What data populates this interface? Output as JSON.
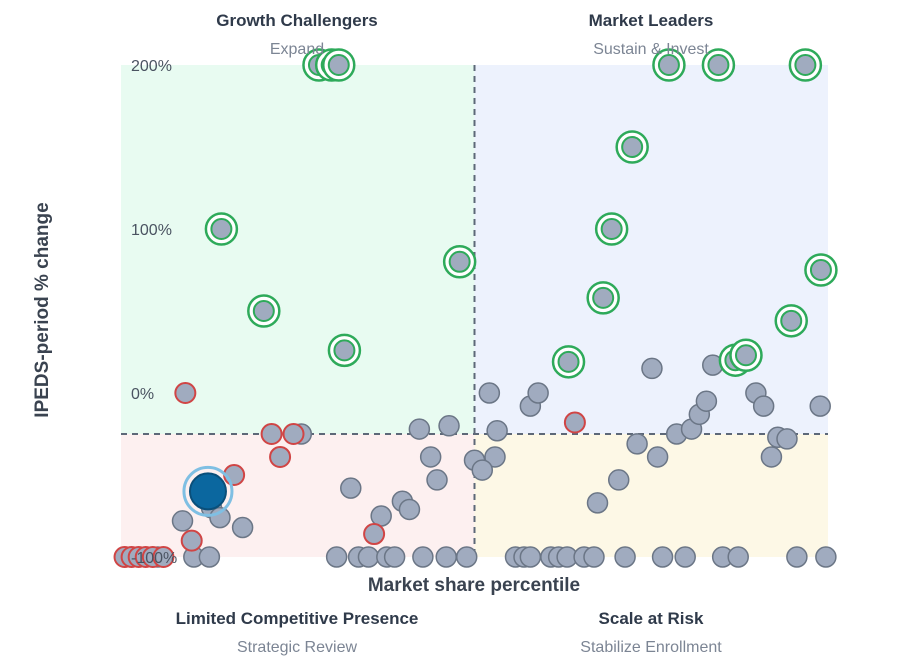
{
  "chart_data": {
    "type": "scatter",
    "xlabel": "Market share percentile",
    "ylabel": "IPEDS-period % change",
    "xlim": [
      0,
      100
    ],
    "ylim": [
      -100,
      200
    ],
    "y_ticks": [
      200,
      100,
      0,
      -100
    ],
    "y_tick_labels": [
      "200%",
      "100%",
      "0%",
      "-100%"
    ],
    "x_divider": 50,
    "y_divider": -25,
    "quadrants": [
      {
        "title": "Growth Challengers",
        "subtitle": "Expand",
        "position": "top-left",
        "fill": "#e8fbf1"
      },
      {
        "title": "Market Leaders",
        "subtitle": "Sustain & Invest",
        "position": "top-right",
        "fill": "#edf2fd"
      },
      {
        "title": "Limited Competitive Presence",
        "subtitle": "Strategic Review",
        "position": "bottom-left",
        "fill": "#fdf0f0"
      },
      {
        "title": "Scale at Risk",
        "subtitle": "Stabilize Enrollment",
        "position": "bottom-right",
        "fill": "#fdf8e6"
      }
    ],
    "colors": {
      "point_fill": "#a0abbf",
      "point_stroke": "#6b7686",
      "growth_ring": "#2eaa5a",
      "decline_ring": "#d04545",
      "highlight_fill": "#0b679f",
      "highlight_ring": "#7fbfe3",
      "divider": "#5d6878"
    },
    "points": [
      {
        "x": 0.5,
        "y": -100,
        "ring": "red"
      },
      {
        "x": 1.5,
        "y": -100,
        "ring": "red"
      },
      {
        "x": 2.5,
        "y": -100,
        "ring": "red"
      },
      {
        "x": 3.5,
        "y": -100,
        "ring": "red"
      },
      {
        "x": 4.5,
        "y": -100,
        "ring": "red"
      },
      {
        "x": 5.2,
        "y": -100,
        "ring": "none"
      },
      {
        "x": 6.0,
        "y": -100,
        "ring": "red"
      },
      {
        "x": 10.3,
        "y": -100,
        "ring": "none"
      },
      {
        "x": 12.5,
        "y": -100,
        "ring": "none"
      },
      {
        "x": 30.5,
        "y": -100,
        "ring": "none"
      },
      {
        "x": 33.6,
        "y": -100,
        "ring": "none"
      },
      {
        "x": 35.0,
        "y": -100,
        "ring": "none"
      },
      {
        "x": 37.6,
        "y": -100,
        "ring": "none"
      },
      {
        "x": 38.7,
        "y": -100,
        "ring": "none"
      },
      {
        "x": 42.7,
        "y": -100,
        "ring": "none"
      },
      {
        "x": 46.0,
        "y": -100,
        "ring": "none"
      },
      {
        "x": 48.9,
        "y": -100,
        "ring": "none"
      },
      {
        "x": 55.8,
        "y": -100,
        "ring": "none"
      },
      {
        "x": 57.0,
        "y": -100,
        "ring": "none"
      },
      {
        "x": 57.9,
        "y": -100,
        "ring": "none"
      },
      {
        "x": 60.8,
        "y": -100,
        "ring": "none"
      },
      {
        "x": 61.9,
        "y": -100,
        "ring": "none"
      },
      {
        "x": 63.1,
        "y": -100,
        "ring": "none"
      },
      {
        "x": 65.5,
        "y": -100,
        "ring": "none"
      },
      {
        "x": 66.9,
        "y": -100,
        "ring": "none"
      },
      {
        "x": 71.3,
        "y": -100,
        "ring": "none"
      },
      {
        "x": 76.6,
        "y": -100,
        "ring": "none"
      },
      {
        "x": 79.8,
        "y": -100,
        "ring": "none"
      },
      {
        "x": 85.1,
        "y": -100,
        "ring": "none"
      },
      {
        "x": 87.3,
        "y": -100,
        "ring": "none"
      },
      {
        "x": 95.6,
        "y": -100,
        "ring": "none"
      },
      {
        "x": 99.7,
        "y": -100,
        "ring": "none"
      },
      {
        "x": 10.0,
        "y": -90,
        "ring": "red"
      },
      {
        "x": 8.7,
        "y": -78,
        "ring": "none"
      },
      {
        "x": 17.2,
        "y": -82,
        "ring": "none"
      },
      {
        "x": 12.8,
        "y": -70,
        "ring": "none"
      },
      {
        "x": 14.0,
        "y": -76,
        "ring": "none"
      },
      {
        "x": 11.5,
        "y": -57,
        "ring": "none"
      },
      {
        "x": 16.0,
        "y": -50,
        "ring": "red"
      },
      {
        "x": 35.8,
        "y": -86,
        "ring": "red"
      },
      {
        "x": 36.8,
        "y": -75,
        "ring": "none"
      },
      {
        "x": 32.5,
        "y": -58,
        "ring": "none"
      },
      {
        "x": 39.8,
        "y": -66,
        "ring": "none"
      },
      {
        "x": 40.8,
        "y": -71,
        "ring": "none"
      },
      {
        "x": 44.7,
        "y": -53,
        "ring": "none"
      },
      {
        "x": 43.8,
        "y": -39,
        "ring": "none"
      },
      {
        "x": 52.9,
        "y": -39,
        "ring": "none"
      },
      {
        "x": 42.2,
        "y": -22,
        "ring": "none"
      },
      {
        "x": 46.4,
        "y": -20,
        "ring": "none"
      },
      {
        "x": 50.0,
        "y": -41,
        "ring": "none"
      },
      {
        "x": 51.1,
        "y": -47,
        "ring": "none"
      },
      {
        "x": 53.2,
        "y": -23,
        "ring": "none"
      },
      {
        "x": 9.1,
        "y": 0,
        "ring": "red"
      },
      {
        "x": 21.3,
        "y": -25,
        "ring": "red"
      },
      {
        "x": 24.4,
        "y": -25,
        "ring": "red"
      },
      {
        "x": 25.5,
        "y": -25,
        "ring": "none"
      },
      {
        "x": 22.5,
        "y": -39,
        "ring": "red"
      },
      {
        "x": 52.1,
        "y": 0,
        "ring": "none"
      },
      {
        "x": 57.9,
        "y": -8,
        "ring": "none"
      },
      {
        "x": 59.0,
        "y": 0,
        "ring": "none"
      },
      {
        "x": 64.2,
        "y": -18,
        "ring": "red"
      },
      {
        "x": 67.4,
        "y": -67,
        "ring": "none"
      },
      {
        "x": 70.4,
        "y": -53,
        "ring": "none"
      },
      {
        "x": 73.0,
        "y": -31,
        "ring": "none"
      },
      {
        "x": 75.9,
        "y": -39,
        "ring": "none"
      },
      {
        "x": 78.6,
        "y": -25,
        "ring": "none"
      },
      {
        "x": 80.7,
        "y": -22,
        "ring": "none"
      },
      {
        "x": 81.8,
        "y": -13,
        "ring": "none"
      },
      {
        "x": 82.8,
        "y": -5,
        "ring": "none"
      },
      {
        "x": 75.1,
        "y": 15,
        "ring": "none"
      },
      {
        "x": 83.7,
        "y": 17,
        "ring": "none"
      },
      {
        "x": 89.8,
        "y": 0,
        "ring": "none"
      },
      {
        "x": 90.9,
        "y": -8,
        "ring": "none"
      },
      {
        "x": 92.0,
        "y": -39,
        "ring": "none"
      },
      {
        "x": 92.9,
        "y": -27,
        "ring": "none"
      },
      {
        "x": 94.2,
        "y": -28,
        "ring": "none"
      },
      {
        "x": 98.9,
        "y": -8,
        "ring": "none"
      },
      {
        "x": 28.0,
        "y": 200,
        "ring": "green"
      },
      {
        "x": 29.0,
        "y": 200,
        "ring": "red"
      },
      {
        "x": 29.8,
        "y": 200,
        "ring": "green"
      },
      {
        "x": 30.8,
        "y": 200,
        "ring": "green"
      },
      {
        "x": 14.2,
        "y": 100,
        "ring": "green"
      },
      {
        "x": 20.2,
        "y": 50,
        "ring": "green"
      },
      {
        "x": 31.6,
        "y": 26,
        "ring": "green"
      },
      {
        "x": 47.9,
        "y": 80,
        "ring": "green"
      },
      {
        "x": 63.3,
        "y": 19,
        "ring": "green"
      },
      {
        "x": 68.2,
        "y": 58,
        "ring": "green"
      },
      {
        "x": 69.4,
        "y": 100,
        "ring": "green"
      },
      {
        "x": 72.3,
        "y": 150,
        "ring": "green"
      },
      {
        "x": 77.5,
        "y": 200,
        "ring": "green"
      },
      {
        "x": 84.5,
        "y": 200,
        "ring": "green"
      },
      {
        "x": 86.9,
        "y": 20,
        "ring": "green"
      },
      {
        "x": 88.4,
        "y": 23,
        "ring": "green"
      },
      {
        "x": 94.8,
        "y": 44,
        "ring": "green"
      },
      {
        "x": 96.8,
        "y": 200,
        "ring": "green"
      },
      {
        "x": 99.0,
        "y": 75,
        "ring": "green"
      }
    ],
    "highlight": {
      "x": 12.3,
      "y": -60
    }
  }
}
